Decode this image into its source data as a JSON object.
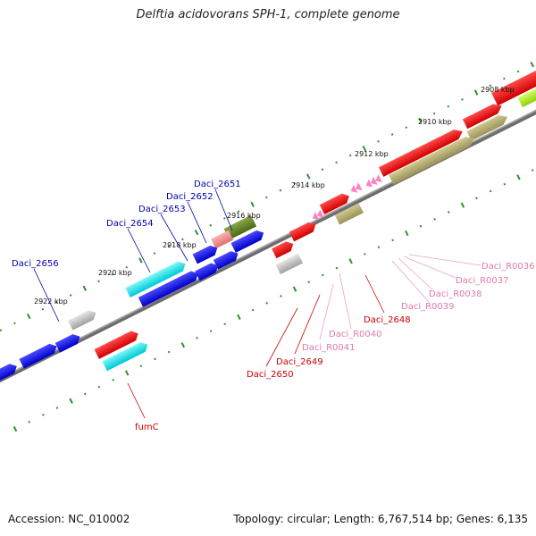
{
  "title": "Delftia acidovorans SPH-1, complete genome",
  "footer": {
    "accession": "Accession: NC_010002",
    "info": "Topology: circular; Length: 6,767,514 bp; Genes: 6,135"
  },
  "map": {
    "kbp_labels": [
      "2908 kbp",
      "2910 kbp",
      "2912 kbp",
      "2914 kbp",
      "2916 kbp",
      "2918 kbp",
      "2920 kbp",
      "2922 kbp"
    ],
    "gene_labels": [
      {
        "text": "Daci_2656",
        "color": "#0000aa"
      },
      {
        "text": "Daci_2654",
        "color": "#0000aa"
      },
      {
        "text": "Daci_2653",
        "color": "#0000aa"
      },
      {
        "text": "Daci_2652",
        "color": "#0000aa"
      },
      {
        "text": "Daci_2651",
        "color": "#0000aa"
      },
      {
        "text": "fumC",
        "color": "#cc0000"
      },
      {
        "text": "Daci_2650",
        "color": "#cc0000"
      },
      {
        "text": "Daci_2649",
        "color": "#cc0000"
      },
      {
        "text": "Daci_R0041",
        "color": "#e07aa8"
      },
      {
        "text": "Daci_R0040",
        "color": "#e07aa8"
      },
      {
        "text": "Daci_2648",
        "color": "#cc0000"
      },
      {
        "text": "Daci_R0039",
        "color": "#e07aa8"
      },
      {
        "text": "Daci_R0038",
        "color": "#e07aa8"
      },
      {
        "text": "Daci_R0037",
        "color": "#e07aa8"
      },
      {
        "text": "Daci_R0036",
        "color": "#e07aa8"
      }
    ],
    "colors": {
      "backbone": "#7a7a7a",
      "tick": "#2f8f2f",
      "blue_gene": "#0000e0",
      "red_gene": "#e00000",
      "cyan_gene": "#00e0e0",
      "olive_gene": "#a8a060",
      "dark_olive_gene": "#5a7a20",
      "pink_gene": "#f08080",
      "grey_gene": "#b0b0b0",
      "lime_gene": "#a0e020",
      "rna": "#ff80c0"
    }
  }
}
